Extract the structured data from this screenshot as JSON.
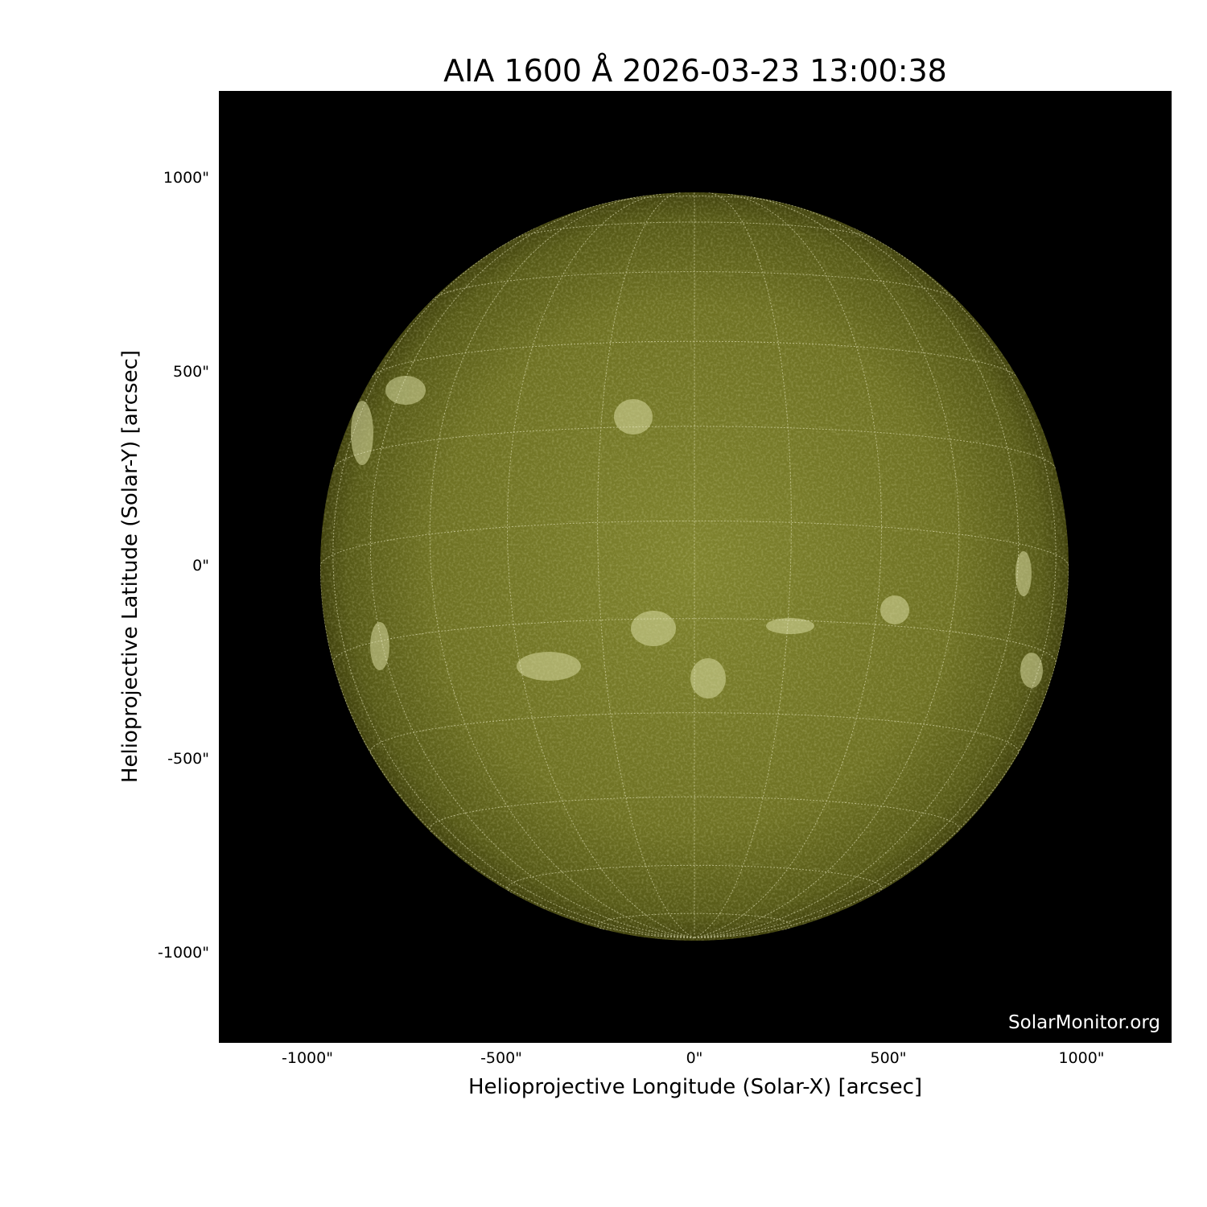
{
  "title": "AIA 1600 Å 2026-03-23 13:00:38",
  "xlabel": "Helioprojective Longitude (Solar-X) [arcsec]",
  "ylabel": "Helioprojective Latitude (Solar-Y) [arcsec]",
  "x_ticks": [
    "-1000\"",
    "-500\"",
    "0\"",
    "500\"",
    "1000\""
  ],
  "y_ticks": [
    "1000\"",
    "500\"",
    "0\"",
    "-500\"",
    "-1000\""
  ],
  "watermark": "SolarMonitor.org",
  "colors": {
    "disk_center": "#7f822e",
    "disk_limb": "#4a4b12",
    "grid": "#e8e8c0"
  }
}
